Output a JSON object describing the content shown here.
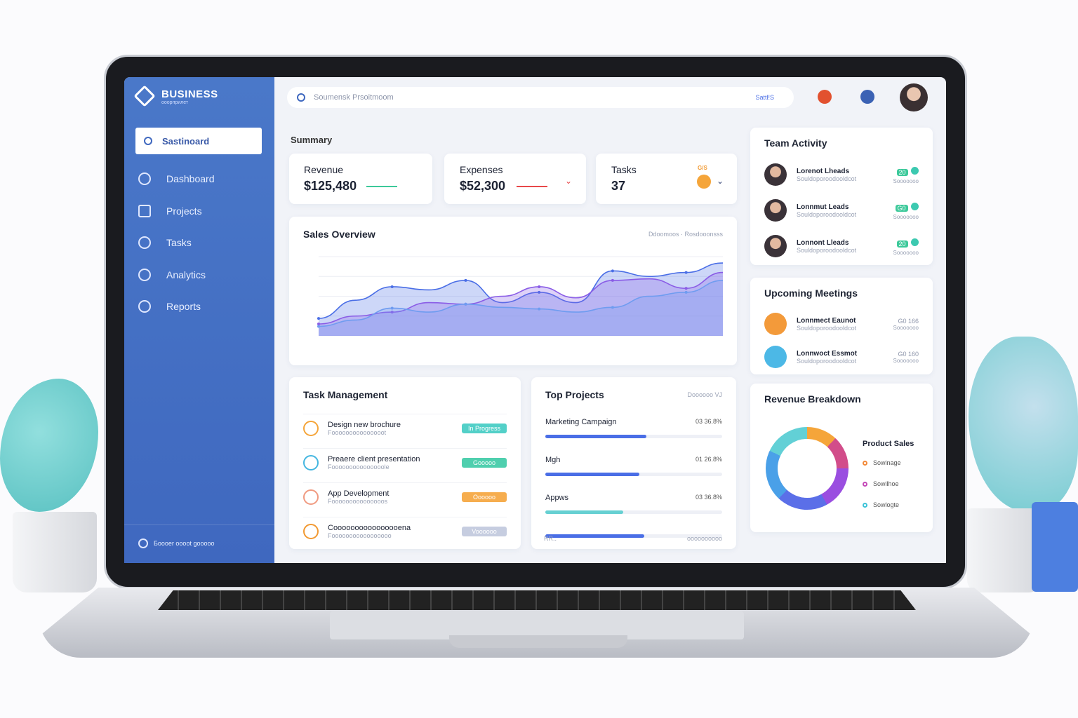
{
  "sidebar": {
    "brand": "BUSINESS",
    "brand_sub": "ооорприлет",
    "search_label": "Sastinoard",
    "items": [
      {
        "label": "Dashboard",
        "icon": "gauge-icon"
      },
      {
        "label": "Projects",
        "icon": "projects-icon"
      },
      {
        "label": "Tasks",
        "icon": "tasks-icon"
      },
      {
        "label": "Analytics",
        "icon": "analytics-icon"
      },
      {
        "label": "Reports",
        "icon": "reports-icon"
      }
    ],
    "footer": "Боооеr ооооt gооооо"
  },
  "header": {
    "search_placeholder": "Soumensk Prsoitmoom",
    "search_action": "Sattl!S"
  },
  "summary": {
    "title": "Summary",
    "cards": [
      {
        "label": "Revenue",
        "value": "$125,480",
        "trend": "up",
        "color": "#3cc99a"
      },
      {
        "label": "Expenses",
        "value": "$52,300",
        "trend": "down",
        "color": "#e8484a"
      },
      {
        "label": "Tasks",
        "value": "37",
        "badge": "G/S",
        "color": "#f5a53a"
      }
    ]
  },
  "sales_overview": {
    "title": "Sales Overview",
    "legend": "Ddoomoos · Rosdooonsss"
  },
  "chart_data": {
    "type": "area",
    "title": "Sales Overview",
    "x": [
      1,
      2,
      3,
      4,
      5,
      6,
      7,
      8,
      9,
      10,
      11,
      12
    ],
    "series": [
      {
        "values": [
          22,
          45,
          62,
          58,
          70,
          42,
          55,
          42,
          82,
          75,
          80,
          92
        ],
        "color": "#4a6ee6"
      },
      {
        "values": [
          15,
          25,
          30,
          42,
          40,
          50,
          62,
          48,
          70,
          72,
          60,
          80
        ],
        "color": "#8a5ce6"
      },
      {
        "values": [
          12,
          20,
          35,
          30,
          40,
          36,
          34,
          30,
          36,
          50,
          55,
          70
        ],
        "color": "#6f9cf0"
      }
    ],
    "grid": true
  },
  "tasks": {
    "title": "Task Management",
    "items": [
      {
        "title": "Design new brochure",
        "sub": "Fоoоооооооооооооt",
        "status": "In Progress",
        "color": "#53d0c8",
        "icon_color": "#f5a53a"
      },
      {
        "title": "Preaere client presentation",
        "sub": "Fooоооооооооооооlе",
        "status": "Gооооо",
        "color": "#4fcfae",
        "icon_color": "#44b6e0"
      },
      {
        "title": "App Development",
        "sub": "Fоооооооооооооооs",
        "status": "Oооооо",
        "color": "#f6ad4e",
        "icon_color": "#f09a80"
      },
      {
        "title": "Cоооооооооооооооеnа",
        "sub": "Fооооооооооооооооо",
        "status": "Voооооо",
        "color": "#c6cde0",
        "icon_color": "#f29a33"
      }
    ]
  },
  "projects": {
    "title": "Top Projects",
    "filter": "Dоооооо VJ",
    "footer_left": "RR..",
    "footer_right": "оооооооооо",
    "items": [
      {
        "name": "Marketing Campaign",
        "pct": "03 36.8%",
        "progress": 57,
        "color": "#4a6ee6"
      },
      {
        "name": "Mgh",
        "pct": "01 26.8%",
        "progress": 53,
        "color": "#4a6ee6"
      },
      {
        "name": "Appws",
        "pct": "03 36.8%",
        "progress": 44,
        "color": "#66d0d2"
      },
      {
        "name": "",
        "pct": "",
        "progress": 56,
        "color": "#4a6ee6"
      }
    ]
  },
  "team": {
    "title": "Team Activity",
    "items": [
      {
        "name": "Lorenot Lheads",
        "sub": "Souldoporoоdooldcot",
        "badge": "20",
        "meta": "Soоооооо"
      },
      {
        "name": "Lonnmut Leads",
        "sub": "Souldoporoоdooldcot",
        "badge": "G0",
        "meta": "Soоооооо"
      },
      {
        "name": "Lonnont Lleads",
        "sub": "Souldoporoоdooldcot",
        "badge": "20",
        "meta": "Soоооооо"
      }
    ]
  },
  "meetings": {
    "title": "Upcoming Meetings",
    "items": [
      {
        "name": "Lonnmect Eaunot",
        "sub": "Souldoporoоdooldcot",
        "time": "G0 166",
        "meta": "Soоооооо"
      },
      {
        "name": "Lonnwoct Essmot",
        "sub": "Souldoporoоdooldcot",
        "time": "G0 160",
        "meta": "Soоооооо"
      }
    ]
  },
  "breakdown": {
    "title": "Revenue Breakdown",
    "legend_title": "Product Sales",
    "legend": [
      {
        "label": "Sowinage",
        "color": "#f28a3a"
      },
      {
        "label": "Sowilhoe",
        "color": "#c449b8"
      },
      {
        "label": "Sowlogte",
        "color": "#3cc3d8"
      }
    ]
  }
}
